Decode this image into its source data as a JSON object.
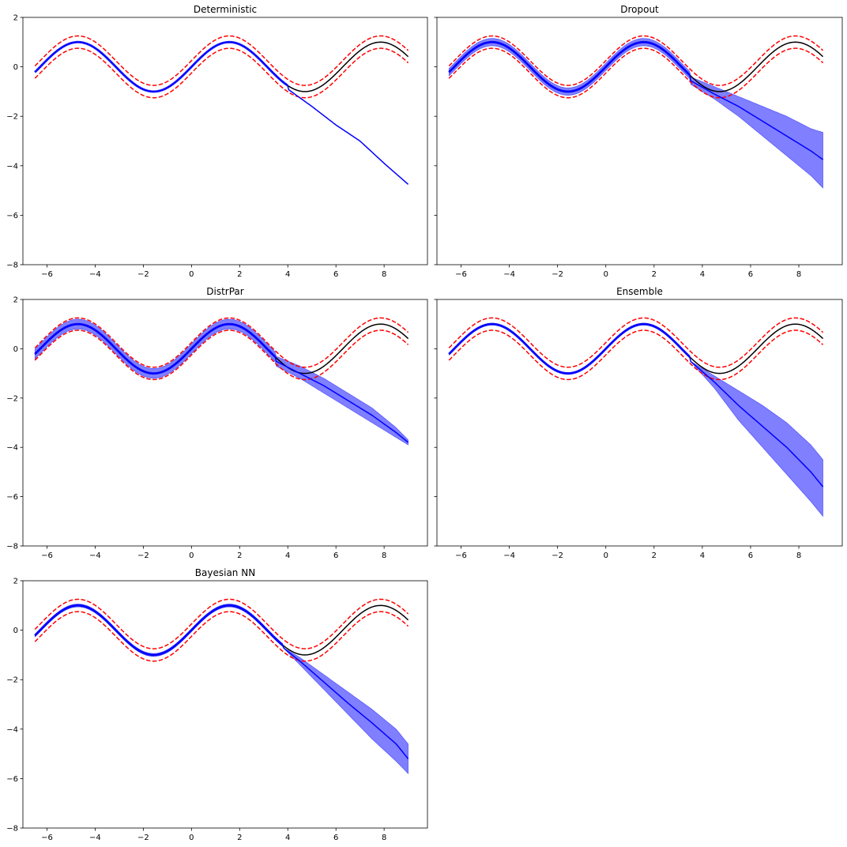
{
  "chart_data": [
    {
      "type": "line",
      "title": "Deterministic",
      "xlim": [
        -7.0,
        9.8
      ],
      "ylim": [
        -8,
        2
      ],
      "xticks": [
        "−6",
        "−4",
        "−2",
        "0",
        "2",
        "4",
        "6",
        "8"
      ],
      "yticks": [
        "−8",
        "−6",
        "−4",
        "−2",
        "0",
        "2"
      ],
      "show_ytick_labels": true,
      "ground_truth": {
        "function": "sin(x)",
        "x_range": [
          -6.5,
          9.0
        ],
        "color": "#000000"
      },
      "noise_bounds": {
        "offset": 0.25,
        "color": "#ff0000",
        "style": "dashed"
      },
      "prediction": {
        "color": "#0000ff",
        "x": [
          4.0,
          5.0,
          6.0,
          7.0,
          8.0,
          9.0
        ],
        "y": [
          -0.9,
          -1.6,
          -2.35,
          -3.0,
          -3.9,
          -4.75
        ],
        "band_x": [],
        "band_lo": [],
        "band_hi": []
      }
    },
    {
      "type": "line",
      "title": "Dropout",
      "xlim": [
        -7.0,
        9.8
      ],
      "ylim": [
        -8,
        2
      ],
      "xticks": [
        "−6",
        "−4",
        "−2",
        "0",
        "2",
        "4",
        "6",
        "8"
      ],
      "yticks": [
        "−8",
        "−6",
        "−4",
        "−2",
        "0",
        "2"
      ],
      "show_ytick_labels": false,
      "ground_truth": {
        "function": "sin(x)",
        "x_range": [
          -6.5,
          9.0
        ],
        "color": "#000000"
      },
      "noise_bounds": {
        "offset": 0.25,
        "color": "#ff0000",
        "style": "dashed"
      },
      "prediction": {
        "color": "#0000ff",
        "x": [
          3.5,
          4.5,
          5.5,
          6.5,
          7.5,
          8.5,
          9.0
        ],
        "y": [
          -0.55,
          -1.1,
          -1.6,
          -2.2,
          -2.8,
          -3.4,
          -3.75
        ],
        "band_x": [
          3.5,
          4.5,
          5.5,
          6.5,
          7.5,
          8.5,
          9.0
        ],
        "band_lo": [
          -0.7,
          -1.3,
          -2.0,
          -2.8,
          -3.6,
          -4.4,
          -4.9
        ],
        "band_hi": [
          -0.4,
          -0.8,
          -1.2,
          -1.6,
          -2.0,
          -2.5,
          -2.65
        ],
        "band_fit_halfwidth": 0.15
      }
    },
    {
      "type": "line",
      "title": "DistrPar",
      "xlim": [
        -7.0,
        9.8
      ],
      "ylim": [
        -8,
        2
      ],
      "xticks": [
        "−6",
        "−4",
        "−2",
        "0",
        "2",
        "4",
        "6",
        "8"
      ],
      "yticks": [
        "−8",
        "−6",
        "−4",
        "−2",
        "0",
        "2"
      ],
      "show_ytick_labels": true,
      "ground_truth": {
        "function": "sin(x)",
        "x_range": [
          -6.5,
          9.0
        ],
        "color": "#000000"
      },
      "noise_bounds": {
        "offset": 0.25,
        "color": "#ff0000",
        "style": "dashed"
      },
      "prediction": {
        "color": "#0000ff",
        "x": [
          3.5,
          4.5,
          5.5,
          6.5,
          7.5,
          8.5,
          9.0
        ],
        "y": [
          -0.5,
          -1.0,
          -1.5,
          -2.1,
          -2.7,
          -3.4,
          -3.8
        ],
        "band_x": [
          3.5,
          4.5,
          5.5,
          6.5,
          7.5,
          8.5,
          9.0
        ],
        "band_lo": [
          -0.7,
          -1.2,
          -1.8,
          -2.4,
          -3.0,
          -3.6,
          -3.9
        ],
        "band_hi": [
          -0.3,
          -0.7,
          -1.2,
          -1.8,
          -2.4,
          -3.2,
          -3.7
        ],
        "band_fit_halfwidth": 0.2
      }
    },
    {
      "type": "line",
      "title": "Ensemble",
      "xlim": [
        -7.0,
        9.8
      ],
      "ylim": [
        -8,
        2
      ],
      "xticks": [
        "−6",
        "−4",
        "−2",
        "0",
        "2",
        "4",
        "6",
        "8"
      ],
      "yticks": [
        "−8",
        "−6",
        "−4",
        "−2",
        "0",
        "2"
      ],
      "show_ytick_labels": false,
      "ground_truth": {
        "function": "sin(x)",
        "x_range": [
          -6.5,
          9.0
        ],
        "color": "#000000"
      },
      "noise_bounds": {
        "offset": 0.25,
        "color": "#ff0000",
        "style": "dashed"
      },
      "prediction": {
        "color": "#0000ff",
        "x": [
          3.5,
          4.5,
          5.5,
          6.5,
          7.5,
          8.5,
          9.0
        ],
        "y": [
          -0.5,
          -1.35,
          -2.3,
          -3.15,
          -4.0,
          -5.0,
          -5.6
        ],
        "band_x": [
          3.5,
          4.5,
          5.5,
          6.5,
          7.5,
          8.5,
          9.0
        ],
        "band_lo": [
          -0.5,
          -1.6,
          -2.9,
          -4.0,
          -5.1,
          -6.2,
          -6.8
        ],
        "band_hi": [
          -0.5,
          -1.1,
          -1.7,
          -2.3,
          -3.0,
          -3.9,
          -4.5
        ],
        "band_fit_halfwidth": 0.04
      }
    },
    {
      "type": "line",
      "title": "Bayesian NN",
      "xlim": [
        -7.0,
        9.8
      ],
      "ylim": [
        -8,
        2
      ],
      "xticks": [
        "−6",
        "−4",
        "−2",
        "0",
        "2",
        "4",
        "6",
        "8"
      ],
      "yticks": [
        "−8",
        "−6",
        "−4",
        "−2",
        "0",
        "2"
      ],
      "show_ytick_labels": true,
      "ground_truth": {
        "function": "sin(x)",
        "x_range": [
          -6.5,
          9.0
        ],
        "color": "#000000"
      },
      "noise_bounds": {
        "offset": 0.25,
        "color": "#ff0000",
        "style": "dashed"
      },
      "prediction": {
        "color": "#0000ff",
        "x": [
          3.8,
          4.5,
          5.5,
          6.5,
          7.5,
          8.5,
          9.0
        ],
        "y": [
          -0.7,
          -1.25,
          -2.1,
          -2.95,
          -3.75,
          -4.6,
          -5.2
        ],
        "band_x": [
          3.8,
          4.5,
          5.5,
          6.5,
          7.5,
          8.5,
          9.0
        ],
        "band_lo": [
          -0.7,
          -1.4,
          -2.4,
          -3.4,
          -4.4,
          -5.3,
          -5.8
        ],
        "band_hi": [
          -0.7,
          -1.1,
          -1.8,
          -2.5,
          -3.2,
          -4.0,
          -4.6
        ],
        "band_fit_halfwidth": 0.06
      }
    }
  ]
}
